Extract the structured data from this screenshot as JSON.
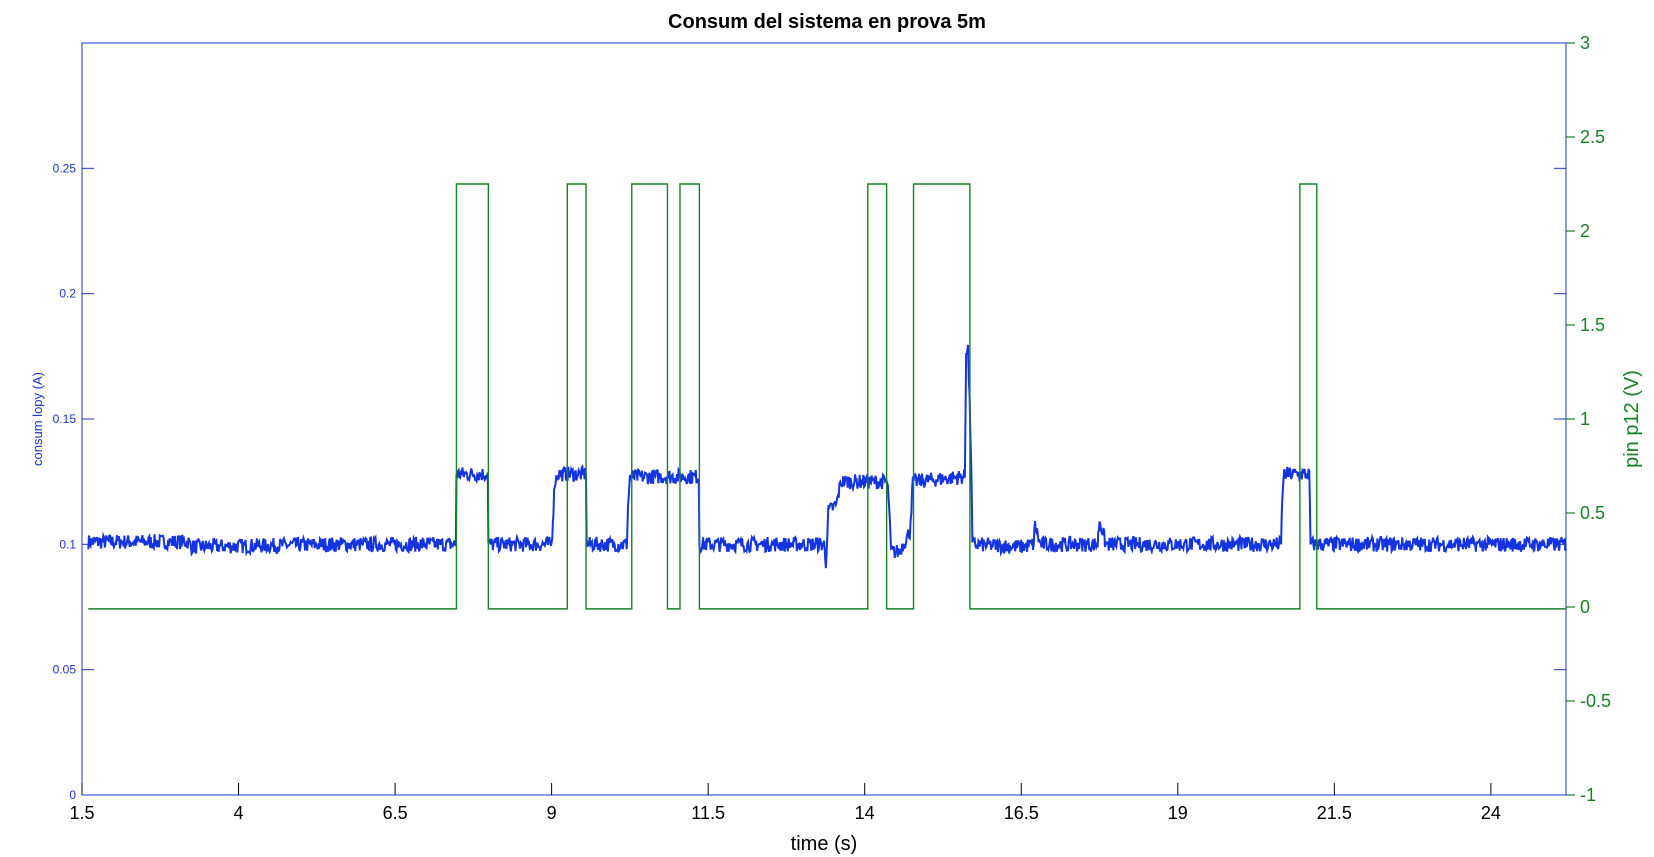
{
  "chart_data": {
    "type": "line",
    "title": "Consum del sistema en prova 5m",
    "xlabel": "time (s)",
    "ylabel_left": "consum lopy (A)",
    "ylabel_right": "pin p12 (V)",
    "xlim": [
      1.5,
      25.2
    ],
    "ylim_left": [
      0,
      0.3
    ],
    "ylim_right": [
      -1,
      3
    ],
    "x_ticks": [
      1.5,
      4,
      6.5,
      9,
      11.5,
      14,
      16.5,
      19,
      21.5,
      24
    ],
    "x_tick_labels": [
      "1.5",
      "4",
      "6.5",
      "9",
      "11.5",
      "14",
      "16.5",
      "19",
      "21.5",
      "24"
    ],
    "y_left_ticks": [
      0,
      0.05,
      0.1,
      0.15,
      0.2,
      0.25
    ],
    "y_left_tick_labels": [
      "0",
      "0.05",
      "0.1",
      "0.15",
      "0.2",
      "0.25"
    ],
    "y_right_ticks": [
      -1,
      -0.5,
      0,
      0.5,
      1,
      1.5,
      2,
      2.5,
      3
    ],
    "y_right_tick_labels": [
      "-1",
      "-0.5",
      "0",
      "0.5",
      "1",
      "1.5",
      "2",
      "2.5",
      "3"
    ],
    "grid": false,
    "colors": {
      "left_axis": "#1f36c9",
      "right_axis": "#1b7f2a",
      "consum_line": "#1434e0",
      "pin_line": "#1b7f2a",
      "frame": "#1f36c9"
    },
    "series": [
      {
        "axis": "left",
        "x": [
          1.6,
          3.2,
          3.25,
          5.6,
          7.47,
          7.48,
          7.98,
          7.99,
          9.0,
          9.02,
          9.05,
          9.1,
          9.55,
          9.56,
          10.2,
          10.22,
          10.25,
          11.35,
          11.36,
          12.7,
          13.35,
          13.38,
          13.42,
          13.55,
          13.62,
          14.35,
          14.38,
          14.42,
          14.55,
          14.72,
          14.77,
          15.6,
          15.62,
          15.65,
          15.7,
          15.72,
          16.5,
          16.7,
          16.72,
          16.8,
          17.5,
          17.72,
          17.75,
          17.85,
          18.5,
          20.45,
          20.65,
          20.67,
          20.7,
          21.1,
          21.12,
          25.2
        ],
        "y": [
          0.101,
          0.101,
          0.099,
          0.1,
          0.1,
          0.128,
          0.128,
          0.1,
          0.1,
          0.11,
          0.125,
          0.128,
          0.128,
          0.1,
          0.1,
          0.115,
          0.127,
          0.127,
          0.1,
          0.1,
          0.1,
          0.093,
          0.113,
          0.116,
          0.125,
          0.125,
          0.12,
          0.097,
          0.097,
          0.105,
          0.125,
          0.127,
          0.178,
          0.178,
          0.135,
          0.1,
          0.099,
          0.1,
          0.108,
          0.1,
          0.1,
          0.1,
          0.11,
          0.1,
          0.1,
          0.1,
          0.1,
          0.12,
          0.128,
          0.128,
          0.1,
          0.1
        ]
      },
      {
        "axis": "right",
        "x": [
          1.6,
          7.48,
          7.48,
          7.99,
          7.99,
          9.25,
          9.25,
          9.55,
          9.55,
          10.28,
          10.28,
          10.85,
          10.85,
          11.05,
          11.05,
          11.36,
          11.36,
          14.05,
          14.05,
          14.35,
          14.35,
          14.78,
          14.78,
          15.68,
          15.68,
          20.95,
          20.95,
          21.22,
          21.22,
          25.2
        ],
        "y": [
          -0.01,
          -0.01,
          2.25,
          2.25,
          -0.01,
          -0.01,
          2.25,
          2.25,
          -0.01,
          -0.01,
          2.25,
          2.25,
          -0.01,
          -0.01,
          2.25,
          2.25,
          -0.01,
          -0.01,
          2.25,
          2.25,
          -0.01,
          -0.01,
          2.25,
          2.25,
          -0.01,
          -0.01,
          2.25,
          2.25,
          -0.01,
          -0.01
        ]
      }
    ]
  }
}
